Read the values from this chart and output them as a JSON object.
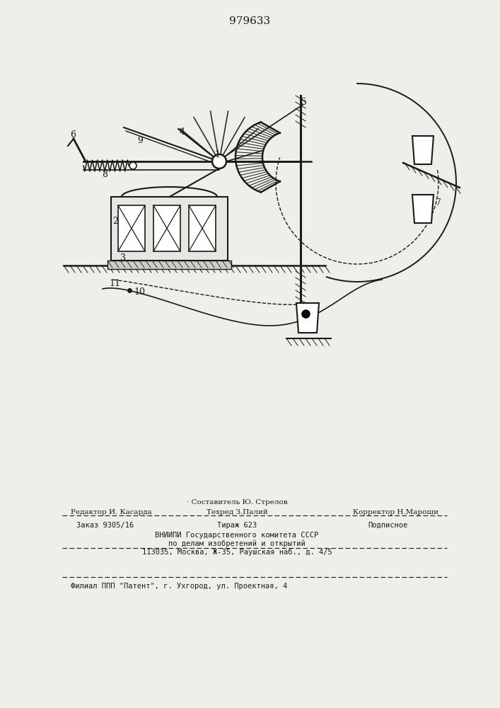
{
  "patent_number": "979633",
  "bg": "#f0eeea",
  "lc": "#1a1a1a",
  "fig_w": 7.07,
  "fig_h": 10.0,
  "text_editor": "Редактор И. Касарда",
  "text_sostavitel": "Составитель Ю. Стрелов",
  "text_tekhred": "Техред З.Палий",
  "text_korrektor": "Корректор Н.Мароши",
  "text_zakaz": "Заказ 9305/16",
  "text_tirazh": "Тираж 623",
  "text_podpisnoe": "Подписное",
  "text_vniip1": "ВНИИПИ Государственного комитета СССР",
  "text_vniip2": "по делам изобретений и открытий",
  "text_vniip3": "113035, Москва, Ж-35, Раушская наб., д. 4/5",
  "text_filial": "Филиал ППП \"Патент\", г. Ухгород, ул. Проектная, 4"
}
